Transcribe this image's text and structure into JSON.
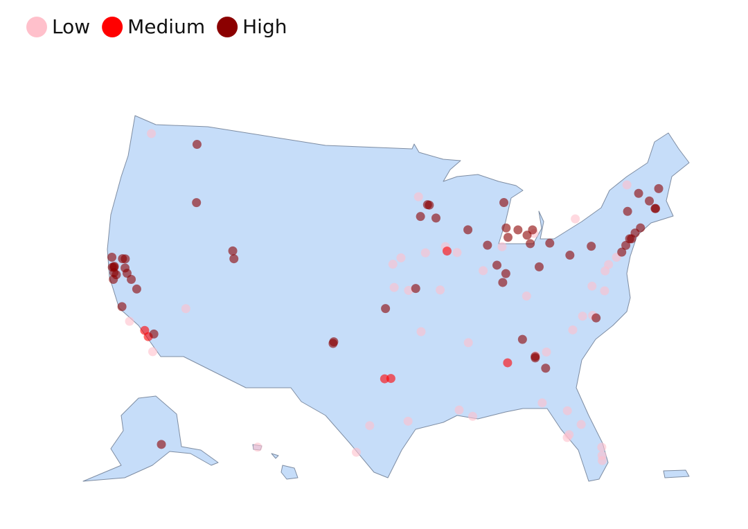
{
  "legend": [
    {
      "name": "Low",
      "color": "#ffc0cb"
    },
    {
      "name": "Medium",
      "color": "#ff0000"
    },
    {
      "name": "High",
      "color": "#8b0000"
    }
  ],
  "points": [
    [
      -122.33,
      47.6,
      0
    ],
    [
      -115.14,
      36.17,
      0
    ],
    [
      -117.16,
      32.72,
      0
    ],
    [
      -119.7,
      34.42,
      0
    ],
    [
      -95.94,
      41.26,
      0
    ],
    [
      -96.7,
      40.81,
      0
    ],
    [
      -96.57,
      39.18,
      0
    ],
    [
      -95.24,
      38.97,
      0
    ],
    [
      -93.6,
      41.59,
      0
    ],
    [
      -91.67,
      41.98,
      0
    ],
    [
      -90.58,
      41.52,
      0
    ],
    [
      -94.16,
      45.56,
      0
    ],
    [
      -94.16,
      36.06,
      0
    ],
    [
      -90.05,
      35.15,
      0
    ],
    [
      -95.37,
      29.76,
      0
    ],
    [
      -98.49,
      29.42,
      0
    ],
    [
      -99.5,
      27.5,
      0
    ],
    [
      -90.07,
      29.95,
      0
    ],
    [
      -91.15,
      30.45,
      0
    ],
    [
      -84.28,
      30.44,
      0
    ],
    [
      -82.46,
      27.95,
      0
    ],
    [
      -81.38,
      28.54,
      0
    ],
    [
      -82.64,
      27.77,
      0
    ],
    [
      -80.19,
      25.76,
      0
    ],
    [
      -80.14,
      26.12,
      0
    ],
    [
      -80.05,
      26.71,
      0
    ],
    [
      -84.32,
      33.8,
      0
    ],
    [
      -83.38,
      33.96,
      0
    ],
    [
      -84.5,
      38.04,
      0
    ],
    [
      -92.33,
      38.95,
      0
    ],
    [
      -83.05,
      42.33,
      0
    ],
    [
      -78.88,
      42.89,
      0
    ],
    [
      -77.04,
      38.9,
      0
    ],
    [
      -76.61,
      39.29,
      0
    ],
    [
      -78.48,
      38.03,
      0
    ],
    [
      -77.44,
      37.54,
      0
    ],
    [
      -78.9,
      36.0,
      0
    ],
    [
      -80.84,
      35.23,
      0
    ],
    [
      -73.21,
      44.48,
      0
    ],
    [
      -75.75,
      39.68,
      0
    ],
    [
      -157.85,
      21.31,
      0
    ],
    [
      -79.79,
      36.07,
      0
    ],
    [
      -88.24,
      40.12,
      0
    ],
    [
      -86.25,
      41.68,
      0
    ],
    [
      -82.32,
      29.65,
      0
    ],
    [
      -118.24,
      34.05,
      1
    ],
    [
      -117.82,
      33.68,
      1
    ],
    [
      -97.33,
      32.75,
      1
    ],
    [
      -96.8,
      32.78,
      1
    ],
    [
      -91.53,
      41.66,
      1
    ],
    [
      -86.8,
      33.52,
      1
    ],
    [
      -117.43,
      47.66,
      2
    ],
    [
      -116.2,
      43.62,
      2
    ],
    [
      -122.42,
      37.77,
      2
    ],
    [
      -122.27,
      37.8,
      2
    ],
    [
      -122.27,
      37.87,
      2
    ],
    [
      -122.14,
      37.44,
      2
    ],
    [
      -121.89,
      37.34,
      2
    ],
    [
      -121.49,
      38.58,
      2
    ],
    [
      -121.74,
      38.54,
      2
    ],
    [
      -122.71,
      38.44,
      2
    ],
    [
      -121.29,
      37.96,
      2
    ],
    [
      -120.99,
      37.64,
      2
    ],
    [
      -122.03,
      36.97,
      2
    ],
    [
      -119.79,
      36.74,
      2
    ],
    [
      -120.48,
      37.3,
      2
    ],
    [
      -120.66,
      35.28,
      2
    ],
    [
      -117.4,
      33.95,
      2
    ],
    [
      -111.89,
      40.76,
      2
    ],
    [
      -111.66,
      40.23,
      2
    ],
    [
      -101.83,
      35.22,
      2
    ],
    [
      -101.88,
      35.1,
      2
    ],
    [
      -97.34,
      37.69,
      2
    ],
    [
      -94.58,
      39.1,
      2
    ],
    [
      -93.27,
      44.98,
      2
    ],
    [
      -93.09,
      44.95,
      2
    ],
    [
      -92.47,
      44.02,
      2
    ],
    [
      -94.0,
      44.16,
      2
    ],
    [
      -89.4,
      43.07,
      2
    ],
    [
      -87.63,
      41.88,
      2
    ],
    [
      -85.62,
      44.76,
      2
    ],
    [
      -85.67,
      42.96,
      2
    ],
    [
      -85.59,
      42.29,
      2
    ],
    [
      -83.74,
      42.28,
      2
    ],
    [
      -84.55,
      42.73,
      2
    ],
    [
      -83.15,
      42.6,
      2
    ],
    [
      -83.54,
      41.66,
      2
    ],
    [
      -81.69,
      41.5,
      2
    ],
    [
      -83.0,
      39.96,
      2
    ],
    [
      -86.16,
      39.77,
      2
    ],
    [
      -86.91,
      40.42,
      2
    ],
    [
      -86.53,
      39.17,
      2
    ],
    [
      -85.31,
      35.05,
      2
    ],
    [
      -84.39,
      33.75,
      2
    ],
    [
      -84.4,
      33.65,
      2
    ],
    [
      -83.63,
      32.84,
      2
    ],
    [
      -78.64,
      35.78,
      2
    ],
    [
      -79.99,
      40.44,
      2
    ],
    [
      -77.86,
      40.79,
      2
    ],
    [
      -75.17,
      39.95,
      2
    ],
    [
      -74.0,
      40.71,
      2
    ],
    [
      -74.17,
      40.74,
      2
    ],
    [
      -74.66,
      40.35,
      2
    ],
    [
      -73.54,
      41.05,
      2
    ],
    [
      -72.93,
      41.31,
      2
    ],
    [
      -71.06,
      42.36,
      2
    ],
    [
      -71.11,
      42.37,
      2
    ],
    [
      -71.46,
      42.99,
      2
    ],
    [
      -70.26,
      43.66,
      2
    ],
    [
      -72.29,
      43.7,
      2
    ],
    [
      -73.76,
      42.65,
      2
    ],
    [
      -149.9,
      61.22,
      2
    ]
  ]
}
